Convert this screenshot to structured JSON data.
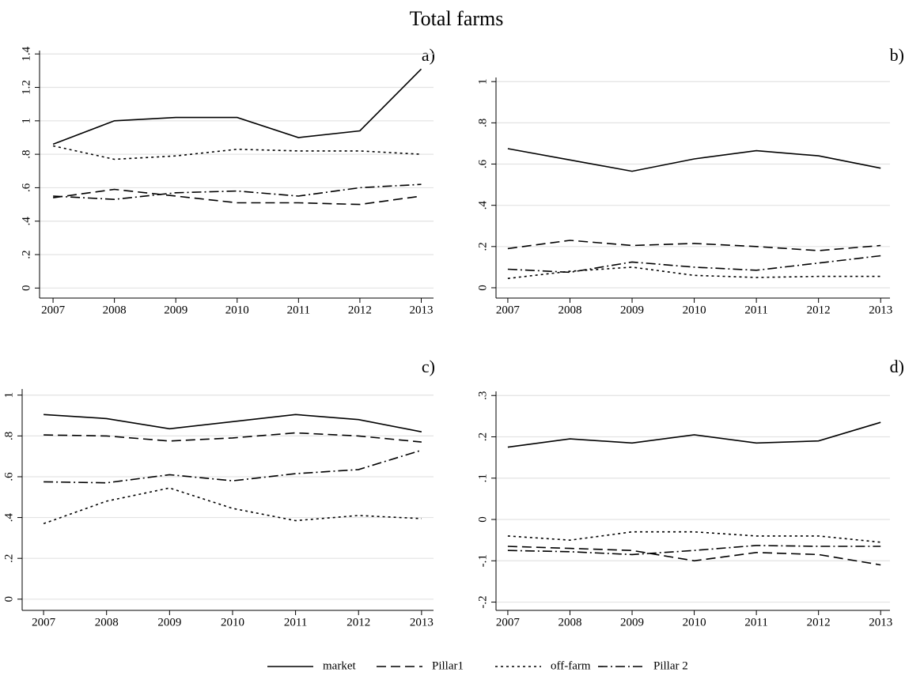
{
  "title": "Total farms",
  "chart_data": [
    {
      "type": "line",
      "title": "a)",
      "x": [
        2007,
        2008,
        2009,
        2010,
        2011,
        2012,
        2013
      ],
      "series": [
        {
          "name": "market",
          "color": "#000000",
          "values": [
            0.86,
            1.0,
            1.02,
            1.02,
            0.9,
            0.94,
            1.31
          ]
        },
        {
          "name": "Pillar1",
          "color": "#000000",
          "values": [
            0.54,
            0.59,
            0.55,
            0.51,
            0.51,
            0.5,
            0.55
          ]
        },
        {
          "name": "off-farm",
          "color": "#000000",
          "values": [
            0.85,
            0.77,
            0.79,
            0.83,
            0.82,
            0.82,
            0.8
          ]
        },
        {
          "name": "Pillar 2",
          "color": "#000000",
          "values": [
            0.55,
            0.53,
            0.57,
            0.58,
            0.55,
            0.6,
            0.62
          ]
        }
      ],
      "xlim": [
        2006.78,
        2013.2
      ],
      "ylim": [
        -0.06,
        1.42
      ],
      "xticks": [
        2007,
        2008,
        2009,
        2010,
        2011,
        2012,
        2013
      ],
      "yticks": [
        0,
        {
          "value": 0.2,
          "label": ".2"
        },
        {
          "value": 0.4,
          "label": ".4"
        },
        {
          "value": 0.6,
          "label": ".6"
        },
        {
          "value": 0.8,
          "label": ".8"
        },
        1,
        1.2,
        1.4
      ],
      "grid": true
    },
    {
      "type": "line",
      "title": "b)",
      "x": [
        2007,
        2008,
        2009,
        2010,
        2011,
        2012,
        2013
      ],
      "series": [
        {
          "name": "market",
          "color": "#000000",
          "values": [
            0.675,
            0.62,
            0.565,
            0.625,
            0.665,
            0.64,
            0.58
          ]
        },
        {
          "name": "Pillar1",
          "color": "#000000",
          "values": [
            0.19,
            0.23,
            0.205,
            0.215,
            0.2,
            0.18,
            0.205
          ]
        },
        {
          "name": "off-farm",
          "color": "#000000",
          "values": [
            0.045,
            0.08,
            0.1,
            0.06,
            0.05,
            0.055,
            0.055
          ]
        },
        {
          "name": "Pillar 2",
          "color": "#000000",
          "values": [
            0.09,
            0.075,
            0.125,
            0.1,
            0.085,
            0.12,
            0.155
          ]
        }
      ],
      "xlim": [
        2006.81,
        2013.15
      ],
      "ylim": [
        -0.05,
        1.02
      ],
      "xticks": [
        2007,
        2008,
        2009,
        2010,
        2011,
        2012,
        2013
      ],
      "yticks": [
        0,
        {
          "value": 0.2,
          "label": ".2"
        },
        {
          "value": 0.4,
          "label": ".4"
        },
        {
          "value": 0.6,
          "label": ".6"
        },
        {
          "value": 0.8,
          "label": ".8"
        },
        1
      ],
      "grid": true
    },
    {
      "type": "line",
      "title": "c)",
      "x": [
        2007,
        2008,
        2009,
        2010,
        2011,
        2012,
        2013
      ],
      "series": [
        {
          "name": "market",
          "color": "#000000",
          "values": [
            0.905,
            0.885,
            0.835,
            0.87,
            0.905,
            0.88,
            0.82
          ]
        },
        {
          "name": "Pillar1",
          "color": "#000000",
          "values": [
            0.805,
            0.8,
            0.775,
            0.79,
            0.815,
            0.8,
            0.77
          ]
        },
        {
          "name": "off-farm",
          "color": "#000000",
          "values": [
            0.37,
            0.48,
            0.545,
            0.445,
            0.385,
            0.41,
            0.395
          ]
        },
        {
          "name": "Pillar 2",
          "color": "#000000",
          "values": [
            0.575,
            0.57,
            0.61,
            0.58,
            0.615,
            0.635,
            0.73
          ]
        }
      ],
      "xlim": [
        2006.66,
        2013.19
      ],
      "ylim": [
        -0.055,
        1.03
      ],
      "xticks": [
        2007,
        2008,
        2009,
        2010,
        2011,
        2012,
        2013
      ],
      "yticks": [
        0,
        {
          "value": 0.2,
          "label": ".2"
        },
        {
          "value": 0.4,
          "label": ".4"
        },
        {
          "value": 0.6,
          "label": ".6"
        },
        {
          "value": 0.8,
          "label": ".8"
        },
        1
      ],
      "grid": true
    },
    {
      "type": "line",
      "title": "d)",
      "x": [
        2007,
        2008,
        2009,
        2010,
        2011,
        2012,
        2013
      ],
      "series": [
        {
          "name": "market",
          "color": "#000000",
          "values": [
            0.175,
            0.195,
            0.185,
            0.205,
            0.185,
            0.19,
            0.235
          ]
        },
        {
          "name": "Pillar1",
          "color": "#000000",
          "values": [
            -0.065,
            -0.07,
            -0.075,
            -0.1,
            -0.08,
            -0.085,
            -0.11
          ]
        },
        {
          "name": "off-farm",
          "color": "#000000",
          "values": [
            -0.04,
            -0.05,
            -0.03,
            -0.03,
            -0.04,
            -0.04,
            -0.055
          ]
        },
        {
          "name": "Pillar 2",
          "color": "#000000",
          "values": [
            -0.075,
            -0.078,
            -0.085,
            -0.075,
            -0.063,
            -0.065,
            -0.065
          ]
        }
      ],
      "xlim": [
        2006.81,
        2013.15
      ],
      "ylim": [
        -0.22,
        0.31
      ],
      "xticks": [
        2007,
        2008,
        2009,
        2010,
        2011,
        2012,
        2013
      ],
      "yticks": [
        {
          "value": -0.2,
          "label": "-.2"
        },
        {
          "value": -0.1,
          "label": "-.1"
        },
        0,
        {
          "value": 0.1,
          "label": ".1"
        },
        {
          "value": 0.2,
          "label": ".2"
        },
        {
          "value": 0.3,
          "label": ".3"
        }
      ],
      "grid": true
    }
  ]
}
